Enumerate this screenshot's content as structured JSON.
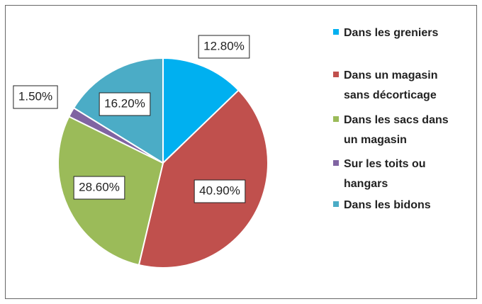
{
  "chart_data": {
    "type": "pie",
    "categories": [
      "Dans les greniers",
      "Dans un magasin sans décorticage",
      "Dans les sacs dans un magasin",
      "Sur les toits ou hangars",
      "Dans les bidons"
    ],
    "values": [
      12.8,
      40.9,
      28.6,
      1.5,
      16.2
    ],
    "value_labels": [
      "12.80%",
      "40.90%",
      "28.60%",
      "1.50%",
      "16.20%"
    ],
    "colors": [
      "#00b0f0",
      "#c0504d",
      "#9bbb59",
      "#8064a2",
      "#4bacc6"
    ],
    "legend": "right"
  }
}
